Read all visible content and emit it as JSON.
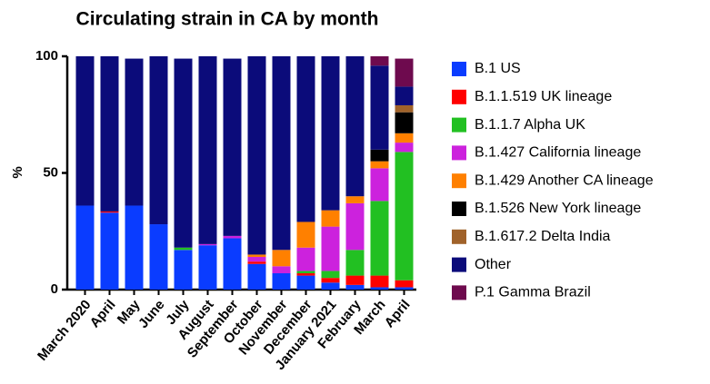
{
  "chart_data": {
    "type": "stacked_bar",
    "title": "Circulating strain in CA by month",
    "y_label": "%",
    "categories": [
      "March 2020",
      "April",
      "May",
      "June",
      "July",
      "August",
      "September",
      "October",
      "November",
      "December",
      "January 2021",
      "February",
      "March",
      "April"
    ],
    "series": [
      {
        "name": "B.1 US",
        "color": "#0a3cff",
        "values": [
          36,
          33,
          36,
          28,
          17,
          19,
          22,
          11,
          7,
          6,
          3,
          2,
          1,
          1
        ]
      },
      {
        "name": "B.1.1.519 UK lineage",
        "color": "#ff0000",
        "values": [
          0,
          0.5,
          0,
          0,
          0,
          0,
          0,
          1,
          0,
          1,
          2,
          4,
          5,
          3
        ]
      },
      {
        "name": "B.1.1.7 Alpha UK",
        "color": "#22c022",
        "values": [
          0,
          0,
          0,
          0,
          1,
          0,
          0,
          0,
          0,
          1,
          3,
          11,
          32,
          55
        ]
      },
      {
        "name": "B.1.427 California lineage",
        "color": "#cc22dd",
        "values": [
          0,
          0,
          0,
          0,
          0,
          0.5,
          1,
          2,
          3,
          10,
          19,
          20,
          14,
          4
        ]
      },
      {
        "name": "B.1.429 Another CA lineage",
        "color": "#ff8000",
        "values": [
          0,
          0,
          0,
          0,
          0,
          0,
          0,
          1,
          7,
          11,
          7,
          3,
          3,
          4
        ]
      },
      {
        "name": "B.1.526 New York lineage",
        "color": "#000000",
        "values": [
          0,
          0,
          0,
          0,
          0,
          0,
          0,
          0,
          0,
          0,
          0,
          0,
          5,
          9
        ]
      },
      {
        "name": "B.1.617.2 Delta India",
        "color": "#a0622a",
        "values": [
          0,
          0,
          0,
          0,
          0,
          0,
          0,
          0,
          0,
          0,
          0,
          0,
          0,
          3
        ]
      },
      {
        "name": "Other",
        "color": "#0b0b7a",
        "values": [
          64,
          66.5,
          63,
          72,
          81,
          80.5,
          76,
          85,
          83,
          71,
          66,
          60,
          36,
          8
        ]
      },
      {
        "name": "P.1 Gamma Brazil",
        "color": "#6e0a4e",
        "values": [
          0,
          0,
          0,
          0,
          0,
          0,
          0,
          0,
          0,
          0,
          0,
          0,
          4,
          12
        ]
      }
    ],
    "ylim": [
      0,
      100
    ],
    "yticks": [
      0,
      50,
      100
    ],
    "legend": "right"
  }
}
